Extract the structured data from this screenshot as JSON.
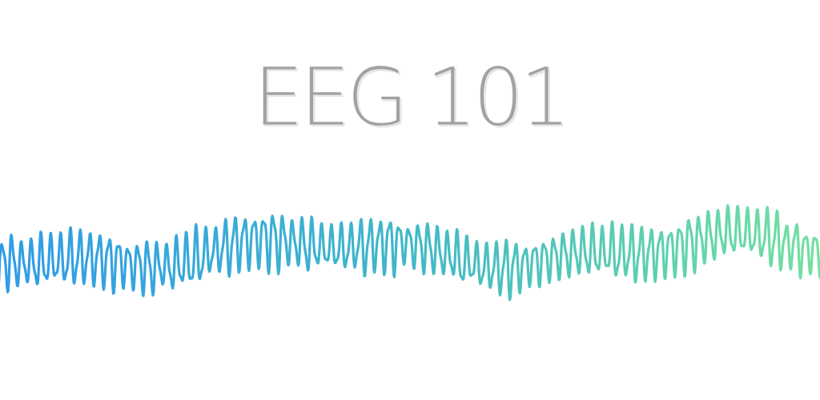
{
  "title": "EEG 101",
  "colors": {
    "background": "#ffffff",
    "title": "#a2a2a2",
    "wave_start": "#2f9be8",
    "wave_mid": "#40b8c8",
    "wave_end": "#74e0a0"
  }
}
